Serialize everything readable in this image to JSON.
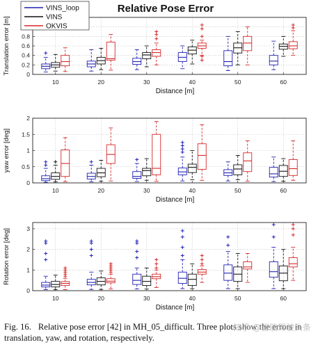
{
  "figure": {
    "title": "Relative Pose Error",
    "legend": [
      {
        "name": "VINS_loop",
        "color": "#1f1fb4"
      },
      {
        "name": "VINS",
        "color": "#111111"
      },
      {
        "name": "OKVIS",
        "color": "#d62728"
      }
    ],
    "legend_position": "top-left",
    "caption_label": "Fig. 16.",
    "caption_text": "Relative pose error [42] in MH_05_difficult. Three plots show the errors in translation, yaw, and rotation, respectively.",
    "watermark": "知乎 @智能驾驶头条"
  },
  "chart_data": [
    {
      "type": "box",
      "xlabel": "Distance [m]",
      "ylabel": "Translation error [m]",
      "categories": [
        "10",
        "20",
        "30",
        "40",
        "50",
        "60"
      ],
      "ylim": [
        0,
        1.2
      ],
      "yticks": [
        0,
        0.2,
        0.4,
        0.6,
        0.8,
        1
      ],
      "grid": "dotted",
      "series": [
        {
          "name": "VINS_loop",
          "color": "#1f1fb4",
          "boxes": [
            {
              "wl": 0.05,
              "q1": 0.12,
              "med": 0.17,
              "q3": 0.22,
              "wh": 0.36,
              "out": [
                0.45
              ]
            },
            {
              "wl": 0.07,
              "q1": 0.16,
              "med": 0.22,
              "q3": 0.28,
              "wh": 0.52,
              "out": []
            },
            {
              "wl": 0.1,
              "q1": 0.21,
              "med": 0.27,
              "q3": 0.34,
              "wh": 0.52,
              "out": []
            },
            {
              "wl": 0.12,
              "q1": 0.27,
              "med": 0.36,
              "q3": 0.46,
              "wh": 0.6,
              "out": []
            },
            {
              "wl": 0.08,
              "q1": 0.18,
              "med": 0.27,
              "q3": 0.5,
              "wh": 0.8,
              "out": []
            },
            {
              "wl": 0.1,
              "q1": 0.2,
              "med": 0.28,
              "q3": 0.4,
              "wh": 0.7,
              "out": []
            }
          ]
        },
        {
          "name": "VINS",
          "color": "#111111",
          "boxes": [
            {
              "wl": 0.07,
              "q1": 0.15,
              "med": 0.2,
              "q3": 0.25,
              "wh": 0.42,
              "out": []
            },
            {
              "wl": 0.1,
              "q1": 0.22,
              "med": 0.29,
              "q3": 0.36,
              "wh": 0.55,
              "out": []
            },
            {
              "wl": 0.16,
              "q1": 0.33,
              "med": 0.41,
              "q3": 0.46,
              "wh": 0.6,
              "out": []
            },
            {
              "wl": 0.22,
              "q1": 0.43,
              "med": 0.51,
              "q3": 0.58,
              "wh": 0.72,
              "out": []
            },
            {
              "wl": 0.2,
              "q1": 0.45,
              "med": 0.56,
              "q3": 0.66,
              "wh": 0.9,
              "out": []
            },
            {
              "wl": 0.38,
              "q1": 0.53,
              "med": 0.59,
              "q3": 0.64,
              "wh": 0.8,
              "out": []
            }
          ]
        },
        {
          "name": "OKVIS",
          "color": "#d62728",
          "boxes": [
            {
              "wl": 0.06,
              "q1": 0.18,
              "med": 0.27,
              "q3": 0.4,
              "wh": 0.56,
              "out": []
            },
            {
              "wl": 0.09,
              "q1": 0.3,
              "med": 0.33,
              "q3": 0.68,
              "wh": 0.84,
              "out": []
            },
            {
              "wl": 0.2,
              "q1": 0.38,
              "med": 0.46,
              "q3": 0.52,
              "wh": 0.66,
              "out": [
                0.75,
                0.84,
                0.9
              ]
            },
            {
              "wl": 0.4,
              "q1": 0.55,
              "med": 0.6,
              "q3": 0.66,
              "wh": 0.72,
              "out": [
                0.3,
                0.38,
                0.8,
                0.96,
                1.04
              ]
            },
            {
              "wl": 0.2,
              "q1": 0.5,
              "med": 0.66,
              "q3": 0.8,
              "wh": 1.0,
              "out": []
            },
            {
              "wl": 0.4,
              "q1": 0.54,
              "med": 0.6,
              "q3": 0.69,
              "wh": 0.92,
              "out": [
                0.98,
                1.04
              ]
            }
          ]
        }
      ]
    },
    {
      "type": "box",
      "xlabel": "Distance [m]",
      "ylabel": "yaw error [deg]",
      "categories": [
        "10",
        "20",
        "30",
        "40",
        "50",
        "60"
      ],
      "ylim": [
        0,
        2
      ],
      "yticks": [
        0,
        0.5,
        1,
        1.5,
        2
      ],
      "grid": "dotted",
      "series": [
        {
          "name": "VINS_loop",
          "color": "#1f1fb4",
          "boxes": [
            {
              "wl": 0.02,
              "q1": 0.07,
              "med": 0.13,
              "q3": 0.22,
              "wh": 0.45,
              "out": [
                0.55,
                0.65
              ]
            },
            {
              "wl": 0.03,
              "q1": 0.12,
              "med": 0.2,
              "q3": 0.3,
              "wh": 0.55,
              "out": [
                0.65
              ]
            },
            {
              "wl": 0.04,
              "q1": 0.14,
              "med": 0.2,
              "q3": 0.35,
              "wh": 0.6,
              "out": [
                0.72
              ]
            },
            {
              "wl": 0.06,
              "q1": 0.25,
              "med": 0.34,
              "q3": 0.46,
              "wh": 0.8,
              "out": [
                0.95,
                1.05,
                1.15,
                1.25
              ]
            },
            {
              "wl": 0.06,
              "q1": 0.23,
              "med": 0.31,
              "q3": 0.41,
              "wh": 0.65,
              "out": []
            },
            {
              "wl": 0.04,
              "q1": 0.18,
              "med": 0.28,
              "q3": 0.48,
              "wh": 0.8,
              "out": []
            }
          ]
        },
        {
          "name": "VINS",
          "color": "#111111",
          "boxes": [
            {
              "wl": 0.03,
              "q1": 0.11,
              "med": 0.2,
              "q3": 0.31,
              "wh": 0.55,
              "out": [
                0.65
              ]
            },
            {
              "wl": 0.05,
              "q1": 0.19,
              "med": 0.31,
              "q3": 0.45,
              "wh": 0.7,
              "out": []
            },
            {
              "wl": 0.08,
              "q1": 0.22,
              "med": 0.38,
              "q3": 0.45,
              "wh": 0.75,
              "out": []
            },
            {
              "wl": 0.1,
              "q1": 0.32,
              "med": 0.48,
              "q3": 0.58,
              "wh": 1.0,
              "out": []
            },
            {
              "wl": 0.1,
              "q1": 0.25,
              "med": 0.43,
              "q3": 0.56,
              "wh": 0.85,
              "out": []
            },
            {
              "wl": 0.05,
              "q1": 0.2,
              "med": 0.36,
              "q3": 0.54,
              "wh": 0.75,
              "out": []
            }
          ]
        },
        {
          "name": "OKVIS",
          "color": "#d62728",
          "boxes": [
            {
              "wl": 0.04,
              "q1": 0.2,
              "med": 0.6,
              "q3": 1.02,
              "wh": 1.4,
              "out": []
            },
            {
              "wl": 0.06,
              "q1": 0.6,
              "med": 0.88,
              "q3": 1.18,
              "wh": 1.7,
              "out": []
            },
            {
              "wl": 0.05,
              "q1": 0.25,
              "med": 0.45,
              "q3": 1.5,
              "wh": 1.9,
              "out": []
            },
            {
              "wl": 0.08,
              "q1": 0.42,
              "med": 0.85,
              "q3": 1.21,
              "wh": 1.8,
              "out": []
            },
            {
              "wl": 0.05,
              "q1": 0.35,
              "med": 0.68,
              "q3": 0.93,
              "wh": 1.3,
              "out": []
            },
            {
              "wl": 0.08,
              "q1": 0.23,
              "med": 0.44,
              "q3": 0.72,
              "wh": 1.3,
              "out": []
            }
          ]
        }
      ]
    },
    {
      "type": "box",
      "xlabel": "Distance [m]",
      "ylabel": "Rotation error [deg]",
      "categories": [
        "10",
        "20",
        "30",
        "40",
        "50",
        "60"
      ],
      "ylim": [
        0,
        3.3
      ],
      "yticks": [
        0,
        1,
        2,
        3
      ],
      "grid": "dotted",
      "series": [
        {
          "name": "VINS_loop",
          "color": "#1f1fb4",
          "boxes": [
            {
              "wl": 0.05,
              "q1": 0.18,
              "med": 0.27,
              "q3": 0.4,
              "wh": 0.7,
              "out": [
                1.5,
                1.8,
                2.3,
                2.4
              ]
            },
            {
              "wl": 0.06,
              "q1": 0.28,
              "med": 0.4,
              "q3": 0.55,
              "wh": 0.9,
              "out": [
                1.7,
                2.0,
                2.3,
                2.4
              ]
            },
            {
              "wl": 0.08,
              "q1": 0.3,
              "med": 0.5,
              "q3": 0.8,
              "wh": 1.1,
              "out": [
                1.6,
                1.9,
                2.3,
                2.4
              ]
            },
            {
              "wl": 0.1,
              "q1": 0.35,
              "med": 0.6,
              "q3": 0.9,
              "wh": 1.5,
              "out": [
                1.7,
                2.1,
                2.6,
                2.9
              ]
            },
            {
              "wl": 0.1,
              "q1": 0.5,
              "med": 0.85,
              "q3": 1.25,
              "wh": 1.9,
              "out": [
                2.2,
                2.6
              ]
            },
            {
              "wl": 0.1,
              "q1": 0.65,
              "med": 0.92,
              "q3": 1.4,
              "wh": 2.1,
              "out": [
                2.6,
                3.2
              ]
            }
          ]
        },
        {
          "name": "VINS",
          "color": "#111111",
          "boxes": [
            {
              "wl": 0.05,
              "q1": 0.18,
              "med": 0.3,
              "q3": 0.45,
              "wh": 0.75,
              "out": []
            },
            {
              "wl": 0.06,
              "q1": 0.28,
              "med": 0.45,
              "q3": 0.62,
              "wh": 0.95,
              "out": []
            },
            {
              "wl": 0.08,
              "q1": 0.25,
              "med": 0.45,
              "q3": 0.7,
              "wh": 1.1,
              "out": []
            },
            {
              "wl": 0.1,
              "q1": 0.25,
              "med": 0.55,
              "q3": 0.8,
              "wh": 1.3,
              "out": []
            },
            {
              "wl": 0.1,
              "q1": 0.45,
              "med": 0.8,
              "q3": 1.15,
              "wh": 1.8,
              "out": []
            },
            {
              "wl": 0.1,
              "q1": 0.48,
              "med": 0.85,
              "q3": 1.2,
              "wh": 2.0,
              "out": []
            }
          ]
        },
        {
          "name": "OKVIS",
          "color": "#d62728",
          "boxes": [
            {
              "wl": 0.05,
              "q1": 0.25,
              "med": 0.35,
              "q3": 0.44,
              "wh": 0.6,
              "out": [
                0.7,
                0.8,
                0.9,
                1.0,
                1.1
              ]
            },
            {
              "wl": 0.08,
              "q1": 0.38,
              "med": 0.46,
              "q3": 0.58,
              "wh": 0.8,
              "out": [
                0.9,
                1.0,
                1.1,
                1.2,
                1.3
              ]
            },
            {
              "wl": 0.15,
              "q1": 0.58,
              "med": 0.68,
              "q3": 0.8,
              "wh": 1.0,
              "out": [
                1.1,
                1.3,
                1.5
              ]
            },
            {
              "wl": 0.4,
              "q1": 0.8,
              "med": 0.9,
              "q3": 1.02,
              "wh": 1.2,
              "out": [
                1.3,
                1.5,
                1.7
              ]
            },
            {
              "wl": 0.4,
              "q1": 1.05,
              "med": 1.15,
              "q3": 1.4,
              "wh": 1.8,
              "out": []
            },
            {
              "wl": 0.5,
              "q1": 1.15,
              "med": 1.3,
              "q3": 1.6,
              "wh": 2.1,
              "out": [
                2.7,
                3.0,
                3.2
              ]
            }
          ]
        }
      ]
    }
  ]
}
